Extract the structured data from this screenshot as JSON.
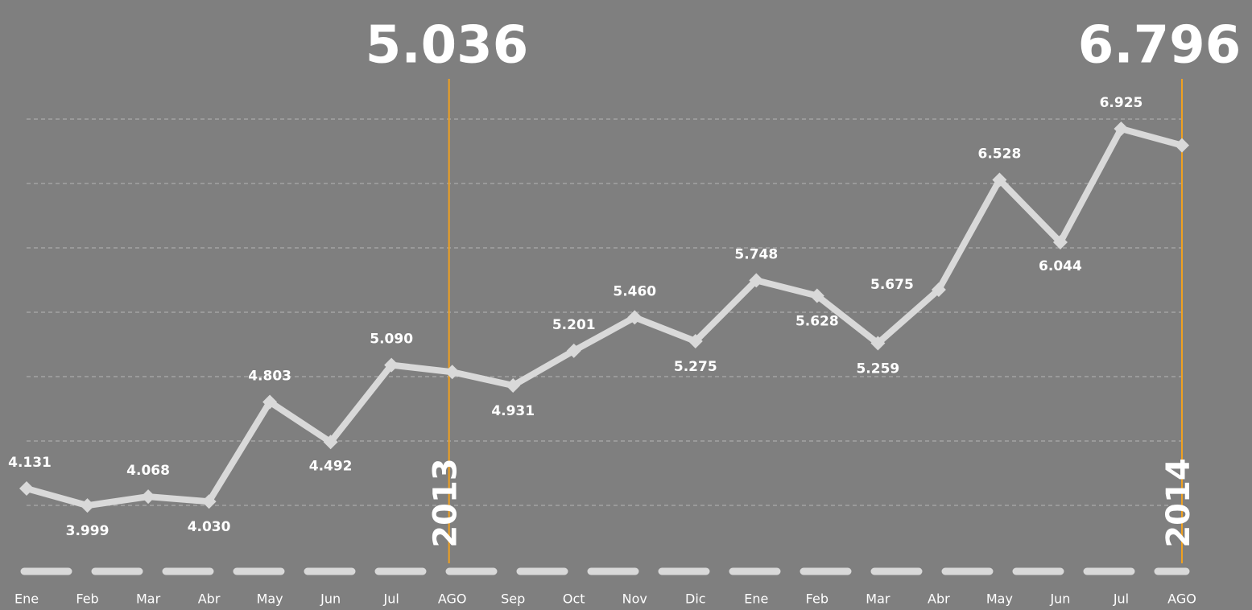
{
  "chart_data": {
    "type": "line",
    "categories": [
      "Ene",
      "Feb",
      "Mar",
      "Abr",
      "May",
      "Jun",
      "Jul",
      "AGO",
      "Sep",
      "Oct",
      "Nov",
      "Dic",
      "Ene",
      "Feb",
      "Mar",
      "Abr",
      "May",
      "Jun",
      "Jul",
      "AGO"
    ],
    "values": [
      4131,
      3999,
      4068,
      4030,
      4803,
      4492,
      5090,
      5036,
      4931,
      5201,
      5460,
      5275,
      5748,
      5628,
      5259,
      5675,
      6528,
      6044,
      6925,
      6796
    ],
    "value_labels": [
      "4.131",
      "3.999",
      "4.068",
      "4.030",
      "4.803",
      "4.492",
      "5.090",
      "5.036",
      "4.931",
      "5.201",
      "5.460",
      "5.275",
      "5.748",
      "5.628",
      "5.259",
      "5.675",
      "6.528",
      "6.044",
      "6.925",
      "6.796"
    ],
    "color": "#d9d9d9",
    "annotations": [
      "2013",
      "2014"
    ],
    "ylim": [
      3500,
      7900
    ],
    "yticks": [
      4000,
      4500,
      5000,
      5500,
      6000,
      6500,
      7000
    ],
    "grid": true
  }
}
